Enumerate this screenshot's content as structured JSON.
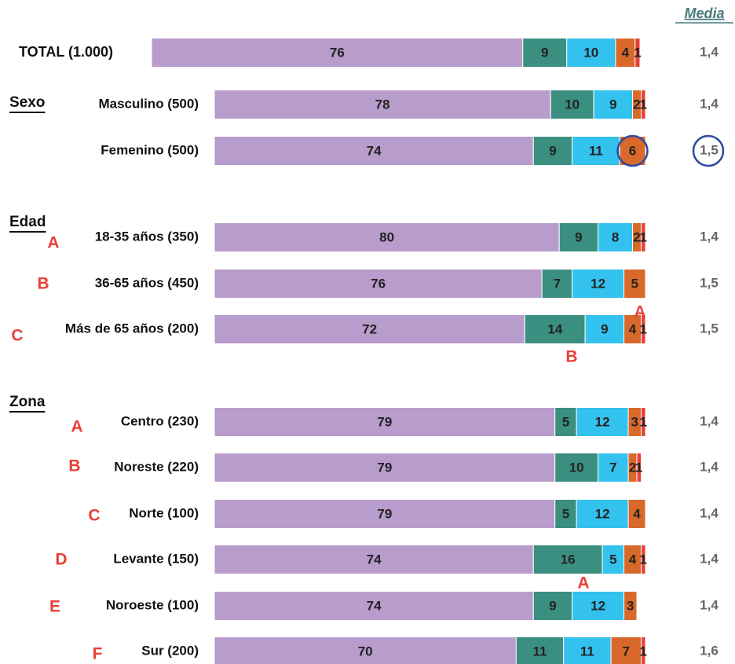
{
  "chart_data": {
    "type": "bar",
    "orientation": "horizontal",
    "stacked": true,
    "media_title": "Media",
    "sections": [
      "Sexo",
      "Edad",
      "Zona"
    ],
    "categories": [
      "TOTAL (1.000)",
      "Masculino (500)",
      "Femenino (500)",
      "18-35 años (350)",
      "36-65 años (450)",
      "Más de 65 años (200)",
      "Centro (230)",
      "Noreste (220)",
      "Norte (100)",
      "Levante (150)",
      "Noroeste (100)",
      "Sur (200)"
    ],
    "row_letters": [
      null,
      null,
      null,
      "A",
      "B",
      "C",
      "A",
      "B",
      "C",
      "D",
      "E",
      "F"
    ],
    "media": [
      "1,4",
      "1,4",
      "1,5",
      "1,4",
      "1,5",
      "1,5",
      "1,4",
      "1,4",
      "1,4",
      "1,4",
      "1,4",
      "1,6"
    ],
    "series": [
      {
        "color": "#b89ccb",
        "values": [
          76,
          78,
          74,
          80,
          76,
          72,
          79,
          79,
          79,
          74,
          74,
          70
        ]
      },
      {
        "color": "#3a8f80",
        "values": [
          9,
          10,
          9,
          9,
          7,
          14,
          5,
          10,
          5,
          16,
          9,
          11
        ]
      },
      {
        "color": "#33c1ee",
        "values": [
          10,
          9,
          11,
          8,
          12,
          9,
          12,
          7,
          12,
          5,
          12,
          11
        ]
      },
      {
        "color": "#d8692a",
        "values": [
          4,
          2,
          6,
          2,
          5,
          4,
          3,
          2,
          4,
          4,
          3,
          7
        ]
      },
      {
        "color": "#e8403a",
        "values": [
          1,
          1,
          null,
          1,
          null,
          1,
          1,
          1,
          null,
          1,
          null,
          1
        ]
      }
    ],
    "annotations": [
      {
        "text": "A"
      },
      {
        "text": "B"
      },
      {
        "text": "A"
      }
    ],
    "xlim": [
      0,
      100
    ]
  }
}
